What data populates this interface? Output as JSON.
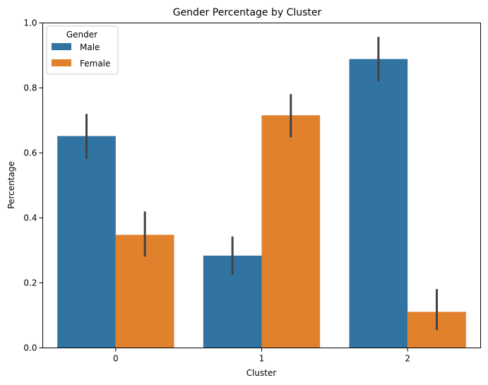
{
  "chart_data": {
    "type": "bar",
    "title": "Gender Percentage by Cluster",
    "xlabel": "Cluster",
    "ylabel": "Percentage",
    "categories": [
      "0",
      "1",
      "2"
    ],
    "ylim": [
      0,
      1.0
    ],
    "yticks": [
      0.0,
      0.2,
      0.4,
      0.6,
      0.8,
      1.0
    ],
    "ytick_labels": [
      "0.0",
      "0.2",
      "0.4",
      "0.6",
      "0.8",
      "1.0"
    ],
    "grid": false,
    "legend": {
      "title": "Gender",
      "placement": "top-left"
    },
    "series": [
      {
        "name": "Male",
        "color": "#3274a1",
        "values": [
          0.652,
          0.284,
          0.889
        ],
        "error_low": [
          0.582,
          0.225,
          0.82
        ],
        "error_high": [
          0.72,
          0.343,
          0.957
        ]
      },
      {
        "name": "Female",
        "color": "#e1812c",
        "values": [
          0.348,
          0.716,
          0.111
        ],
        "error_low": [
          0.281,
          0.648,
          0.055
        ],
        "error_high": [
          0.42,
          0.781,
          0.181
        ]
      }
    ],
    "error_color": "#424242"
  }
}
